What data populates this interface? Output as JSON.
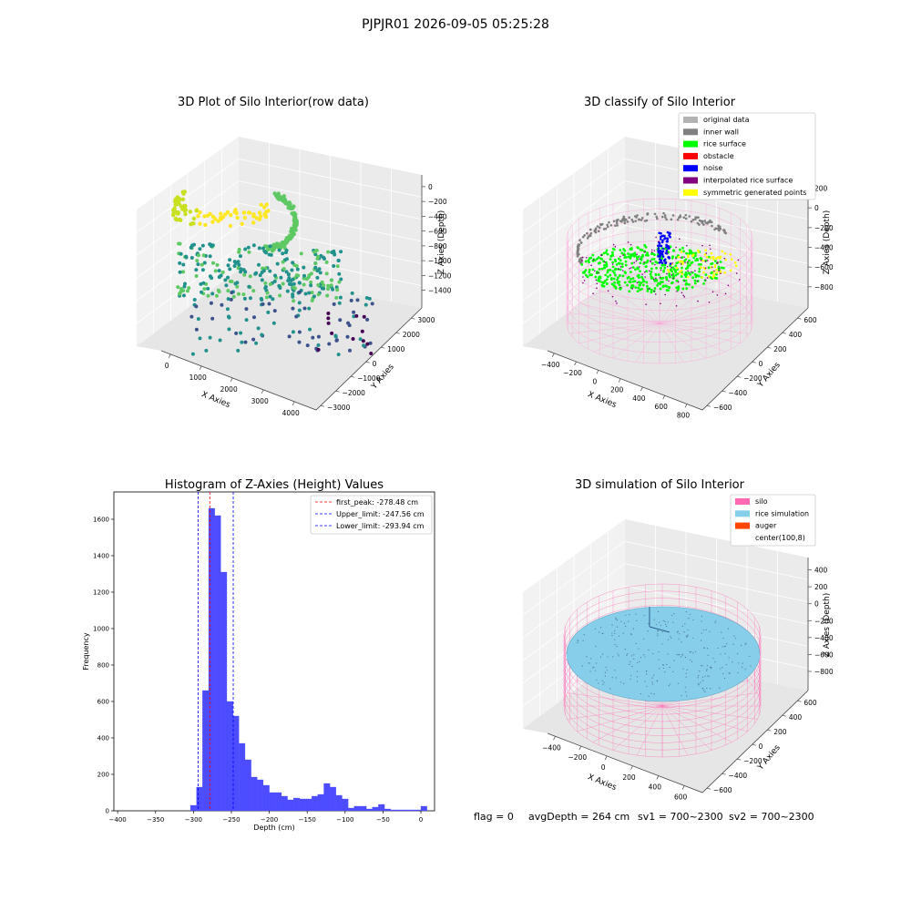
{
  "suptitle": "PJPJR01 2026-09-05 05:25:28",
  "footer": {
    "flag": "flag = 0",
    "avg_depth": "avgDepth = 264 cm",
    "sv1": "sv1 = 700~2300",
    "sv2": "sv2 = 700~2300"
  },
  "chart_data": [
    {
      "type": "scatter",
      "title": "3D Plot of Silo Interior(row data)",
      "xlabel": "X Axies",
      "ylabel": "Y Axies",
      "zlabel": "Z Axies (Depth)",
      "xticks": [
        "0",
        "1000",
        "2000",
        "3000",
        "4000"
      ],
      "yticks": [
        "−3000",
        "−2000",
        "−1000",
        "0",
        "1000",
        "2000",
        "3000"
      ],
      "zticks": [
        "0",
        "−200",
        "−400",
        "−600",
        "−800",
        "−1000",
        "−1200",
        "−1400"
      ],
      "colormap": [
        "#440154",
        "#3b528b",
        "#21918c",
        "#5ec962",
        "#fde725"
      ]
    },
    {
      "type": "scatter",
      "title": "3D classify of Silo Interior",
      "xlabel": "X Axies",
      "ylabel": "Y Axies",
      "zlabel": "Z Axies (Depth)",
      "xticks": [
        "−400",
        "−200",
        "0",
        "200",
        "400",
        "600",
        "800"
      ],
      "yticks": [
        "−600",
        "−400",
        "−200",
        "0",
        "200",
        "400",
        "600"
      ],
      "zticks": [
        "200",
        "0",
        "−200",
        "−400",
        "−600",
        "−800"
      ],
      "legend_position": "top-right",
      "legend": [
        {
          "label": "original data",
          "color": "#b3b3b3"
        },
        {
          "label": "inner wall",
          "color": "#808080"
        },
        {
          "label": "rice surface",
          "color": "#00ff00"
        },
        {
          "label": "obstacle",
          "color": "#ff0000"
        },
        {
          "label": "noise",
          "color": "#0000ff"
        },
        {
          "label": "interpolated rice surface",
          "color": "#800080"
        },
        {
          "label": "symmetric generated points",
          "color": "#ffff00"
        }
      ]
    },
    {
      "type": "bar",
      "title": "Histogram of Z-Axies (Height) Values",
      "xlabel": "Depth (cm)",
      "ylabel": "Frequency",
      "xlim": [
        -405,
        18
      ],
      "ylim": [
        0,
        1750
      ],
      "xticks": [
        -400,
        -350,
        -300,
        -250,
        -200,
        -150,
        -100,
        -50,
        0
      ],
      "yticks": [
        0,
        200,
        400,
        600,
        800,
        1000,
        1200,
        1400,
        1600
      ],
      "xtick_labels": [
        "−400",
        "−350",
        "−300",
        "−250",
        "−200",
        "−150",
        "−100",
        "−50",
        "0"
      ],
      "bar_color": "#4d4dff",
      "bin_width": 8,
      "bins": [
        {
          "x": -304,
          "value": 30
        },
        {
          "x": -296,
          "value": 130
        },
        {
          "x": -288,
          "value": 660
        },
        {
          "x": -280,
          "value": 1660
        },
        {
          "x": -272,
          "value": 1620
        },
        {
          "x": -264,
          "value": 1310
        },
        {
          "x": -256,
          "value": 600
        },
        {
          "x": -248,
          "value": 520
        },
        {
          "x": -240,
          "value": 370
        },
        {
          "x": -232,
          "value": 280
        },
        {
          "x": -224,
          "value": 185
        },
        {
          "x": -216,
          "value": 170
        },
        {
          "x": -208,
          "value": 140
        },
        {
          "x": -200,
          "value": 100
        },
        {
          "x": -192,
          "value": 100
        },
        {
          "x": -184,
          "value": 80
        },
        {
          "x": -176,
          "value": 60
        },
        {
          "x": -168,
          "value": 70
        },
        {
          "x": -160,
          "value": 65
        },
        {
          "x": -152,
          "value": 65
        },
        {
          "x": -144,
          "value": 80
        },
        {
          "x": -136,
          "value": 90
        },
        {
          "x": -128,
          "value": 150
        },
        {
          "x": -120,
          "value": 130
        },
        {
          "x": -112,
          "value": 85
        },
        {
          "x": -104,
          "value": 65
        },
        {
          "x": -96,
          "value": 15
        },
        {
          "x": -88,
          "value": 25
        },
        {
          "x": -80,
          "value": 25
        },
        {
          "x": -72,
          "value": 10
        },
        {
          "x": -64,
          "value": 20
        },
        {
          "x": -56,
          "value": 35
        },
        {
          "x": -48,
          "value": 10
        },
        {
          "x": -40,
          "value": 5
        },
        {
          "x": -32,
          "value": 5
        },
        {
          "x": -24,
          "value": 5
        },
        {
          "x": -16,
          "value": 5
        },
        {
          "x": -8,
          "value": 5
        },
        {
          "x": 0,
          "value": 25
        }
      ],
      "vlines": [
        {
          "label": "first_peak: -278.48 cm",
          "x": -278.48,
          "color": "#ff0000"
        },
        {
          "label": "Upper_limit: -247.56 cm",
          "x": -247.56,
          "color": "#0000ff"
        },
        {
          "label": "Lower_limit: -293.94 cm",
          "x": -293.94,
          "color": "#0000ff"
        }
      ],
      "legend_position": "top-right"
    },
    {
      "type": "scatter",
      "title": "3D simulation of Silo Interior",
      "xlabel": "X Axies",
      "ylabel": "Y Axies",
      "zlabel": "Z Axies (Depth)",
      "xticks": [
        "−400",
        "−200",
        "0",
        "200",
        "400",
        "600"
      ],
      "yticks": [
        "−600",
        "−400",
        "−200",
        "0",
        "200",
        "400",
        "600"
      ],
      "zticks": [
        "400",
        "200",
        "0",
        "−200",
        "−400",
        "−600",
        "−800"
      ],
      "legend_position": "top-right",
      "legend": [
        {
          "label": "silo",
          "color": "#ff69b4"
        },
        {
          "label": "rice simulation",
          "color": "#87ceeb"
        },
        {
          "label": "auger",
          "color": "#ff4500"
        },
        {
          "label": "center(100,8)",
          "color": "#ffffff"
        }
      ]
    }
  ]
}
